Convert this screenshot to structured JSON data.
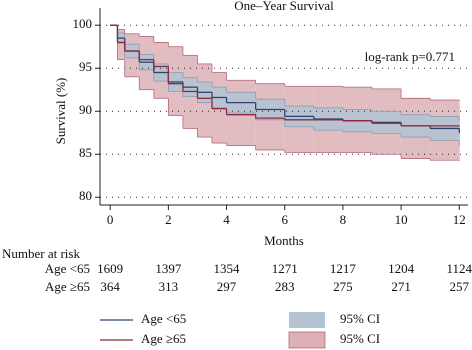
{
  "chart_data": {
    "type": "survival",
    "title": "One–Year Survival",
    "xlabel": "Months",
    "ylabel": "Survival (%)",
    "annotation": "log-rank p=0.771",
    "xlim": [
      -0.35,
      12.3
    ],
    "ylim": [
      79.1,
      102
    ],
    "xticks": [
      0,
      2,
      4,
      6,
      8,
      10,
      12
    ],
    "yticks": [
      80,
      85,
      90,
      95,
      100
    ],
    "grid": true,
    "x": [
      0,
      0.25,
      0.5,
      1,
      1.5,
      2,
      2.5,
      3,
      3.5,
      4,
      5,
      6,
      7,
      8,
      9,
      10,
      11,
      12
    ],
    "series": [
      {
        "name": "Age <65",
        "color": "#2e4370",
        "ci_name": "95% CI",
        "ci_color": "#b4c2d2",
        "values": [
          100,
          98.5,
          97,
          95.7,
          94.5,
          93.4,
          92.8,
          92.2,
          91.6,
          91.0,
          90.2,
          89.4,
          89.1,
          88.9,
          88.7,
          88.3,
          88.0,
          87.5
        ],
        "ci_lower": [
          100,
          97.9,
          96.2,
          94.8,
          93.5,
          92.3,
          91.7,
          91.0,
          90.4,
          89.8,
          89.0,
          88.2,
          87.8,
          87.6,
          87.4,
          87.0,
          86.6,
          86.0
        ],
        "ci_upper": [
          100,
          99.1,
          97.8,
          96.6,
          95.5,
          94.5,
          93.9,
          93.4,
          92.8,
          92.2,
          91.4,
          90.6,
          90.4,
          90.2,
          90.0,
          89.6,
          89.4,
          89.0
        ]
      },
      {
        "name": "Age ≥65",
        "color": "#8b2a3a",
        "ci_name": "95% CI",
        "ci_color": "#dcb0b6",
        "values": [
          100,
          98,
          97,
          96,
          95.2,
          93.2,
          92.3,
          91.5,
          90.3,
          89.6,
          89.2,
          89.0,
          89.0,
          88.9,
          88.6,
          88.3,
          88.3,
          88.3
        ],
        "ci_lower": [
          100,
          96,
          94,
          92.5,
          91.5,
          89.5,
          88,
          87,
          86.3,
          86,
          85.5,
          85.2,
          85.2,
          85.2,
          85,
          84.5,
          84.3,
          84.3
        ],
        "ci_upper": [
          100,
          99.5,
          99,
          98.7,
          98.0,
          97.5,
          96.5,
          95.5,
          94.5,
          93.6,
          93.2,
          92.9,
          92.9,
          92.8,
          92.6,
          91.5,
          91.3,
          91.3
        ]
      }
    ],
    "risk_table": {
      "title": "Number at risk",
      "rows": [
        {
          "label": "Age <65",
          "values": [
            1609,
            1397,
            1354,
            1271,
            1217,
            1204,
            1124
          ]
        },
        {
          "label": "Age ≥65",
          "values": [
            364,
            313,
            297,
            283,
            275,
            271,
            257
          ]
        }
      ]
    }
  }
}
